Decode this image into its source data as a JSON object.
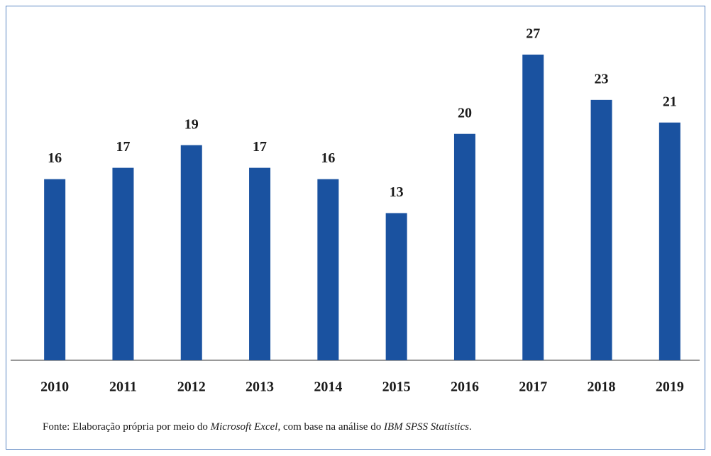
{
  "chart_data": {
    "type": "bar",
    "categories": [
      "2010",
      "2011",
      "2012",
      "2013",
      "2014",
      "2015",
      "2016",
      "2017",
      "2018",
      "2019"
    ],
    "values": [
      16,
      17,
      19,
      17,
      16,
      13,
      20,
      27,
      23,
      21
    ],
    "color": "#1a52a0",
    "ylim": [
      0,
      27
    ],
    "note": [
      "Fonte: Elaboração própria por meio do ",
      "Microsoft Excel",
      ", com base na análise do ",
      "IBM SPSS Statistics",
      "."
    ]
  }
}
